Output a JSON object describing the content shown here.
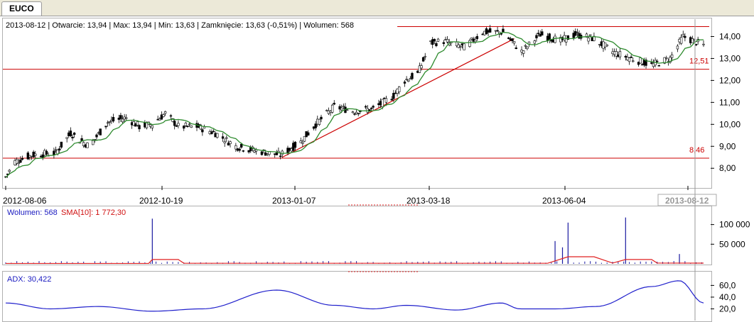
{
  "tab": {
    "label": "EUCO"
  },
  "info": {
    "date": "2013-08-12",
    "open_label": "Otwarcie:",
    "open": "13,94",
    "max_label": "Max:",
    "max": "13,94",
    "min_label": "Min:",
    "min": "13,63",
    "close_label": "Zamknięcie:",
    "close": "13,63 (-0,51%)",
    "volume_label": "Wolumen:",
    "volume": "568"
  },
  "volume_panel": {
    "label": "Wolumen: 568",
    "sma_label": "SMA[10]: 1 772,30"
  },
  "adx_panel": {
    "label": "ADX: 30,422"
  },
  "colors": {
    "price_line": "#cc0000",
    "sma": "#2e8b2e",
    "volume": "#1a1aa0",
    "vol_sma": "#e02020",
    "adx": "#2020cc"
  },
  "chart_data": [
    {
      "type": "candlestick",
      "x_tick_labels": [
        "2012-08-06",
        "2012-10-19",
        "2013-01-07",
        "2013-03-18",
        "2013-06-04",
        "2013-08-12"
      ],
      "y_tick_labels": [
        "8,00",
        "9,00",
        "10,00",
        "11,00",
        "12,00",
        "13,00",
        "14,00"
      ],
      "ylim": [
        7.2,
        14.5
      ],
      "horizontal_lines": [
        {
          "value": 12.51,
          "label": "12,51"
        },
        {
          "value": 8.46,
          "label": "8,46"
        },
        {
          "value": 14.45,
          "label": ""
        }
      ],
      "trend_line": [
        [
          "2012-12-28",
          8.5
        ],
        [
          "2013-05-02",
          13.9
        ]
      ],
      "close_path": [
        [
          "2012-08-01",
          7.6
        ],
        [
          "2012-08-06",
          8.3
        ],
        [
          "2012-08-15",
          8.6
        ],
        [
          "2012-08-28",
          8.7
        ],
        [
          "2012-09-05",
          9.6
        ],
        [
          "2012-09-15",
          9.0
        ],
        [
          "2012-09-25",
          10.1
        ],
        [
          "2012-10-05",
          10.3
        ],
        [
          "2012-10-12",
          9.9
        ],
        [
          "2012-10-19",
          10.0
        ],
        [
          "2012-10-26",
          10.5
        ],
        [
          "2012-11-02",
          9.9
        ],
        [
          "2012-11-12",
          9.9
        ],
        [
          "2012-11-22",
          9.6
        ],
        [
          "2012-12-03",
          9.0
        ],
        [
          "2012-12-14",
          8.8
        ],
        [
          "2012-12-27",
          8.6
        ],
        [
          "2013-01-07",
          9.2
        ],
        [
          "2013-01-15",
          10.0
        ],
        [
          "2013-01-25",
          10.8
        ],
        [
          "2013-02-05",
          10.6
        ],
        [
          "2013-02-15",
          10.7
        ],
        [
          "2013-02-26",
          11.3
        ],
        [
          "2013-03-04",
          12.0
        ],
        [
          "2013-03-11",
          12.3
        ],
        [
          "2013-03-18",
          13.7
        ],
        [
          "2013-03-25",
          13.8
        ],
        [
          "2013-04-05",
          13.5
        ],
        [
          "2013-04-15",
          14.2
        ],
        [
          "2013-04-26",
          14.2
        ],
        [
          "2013-05-06",
          13.3
        ],
        [
          "2013-05-16",
          14.1
        ],
        [
          "2013-05-27",
          13.8
        ],
        [
          "2013-06-04",
          14.1
        ],
        [
          "2013-06-14",
          13.9
        ],
        [
          "2013-06-24",
          13.3
        ],
        [
          "2013-07-04",
          13.0
        ],
        [
          "2013-07-15",
          12.7
        ],
        [
          "2013-07-25",
          13.0
        ],
        [
          "2013-08-01",
          14.0
        ],
        [
          "2013-08-12",
          13.6
        ]
      ]
    },
    {
      "type": "bar",
      "name": "Wolumen",
      "y_tick_labels": [
        "50 000",
        "100 000"
      ],
      "ylim": [
        0,
        130000
      ],
      "spikes": [
        [
          "2012-10-19",
          115000
        ],
        [
          "2013-05-24",
          58000
        ],
        [
          "2013-05-28",
          42000
        ],
        [
          "2013-05-31",
          105000
        ],
        [
          "2013-07-01",
          118000
        ],
        [
          "2013-07-30",
          25000
        ]
      ],
      "sma_path": [
        [
          "2012-08-01",
          1000
        ],
        [
          "2012-10-17",
          1000
        ],
        [
          "2012-10-19",
          11000
        ],
        [
          "2012-11-02",
          11000
        ],
        [
          "2012-11-05",
          1500
        ],
        [
          "2013-05-20",
          1500
        ],
        [
          "2013-05-31",
          18000
        ],
        [
          "2013-06-14",
          18000
        ],
        [
          "2013-06-24",
          2000
        ],
        [
          "2013-07-01",
          11000
        ],
        [
          "2013-07-15",
          11000
        ],
        [
          "2013-07-18",
          2000
        ],
        [
          "2013-08-12",
          1772
        ]
      ]
    },
    {
      "type": "line",
      "name": "ADX",
      "y_tick_labels": [
        "20,0",
        "40,0",
        "60,0"
      ],
      "ylim": [
        0,
        75
      ],
      "values": [
        [
          "2012-08-01",
          30
        ],
        [
          "2012-08-25",
          20
        ],
        [
          "2012-09-20",
          24
        ],
        [
          "2012-10-19",
          16
        ],
        [
          "2012-11-15",
          20
        ],
        [
          "2012-12-25",
          52
        ],
        [
          "2013-01-25",
          26
        ],
        [
          "2013-02-15",
          20
        ],
        [
          "2013-03-05",
          26
        ],
        [
          "2013-04-01",
          18
        ],
        [
          "2013-04-25",
          30
        ],
        [
          "2013-05-05",
          20
        ],
        [
          "2013-05-25",
          20
        ],
        [
          "2013-06-15",
          24
        ],
        [
          "2013-07-15",
          58
        ],
        [
          "2013-07-30",
          68
        ],
        [
          "2013-08-12",
          30
        ]
      ]
    }
  ]
}
